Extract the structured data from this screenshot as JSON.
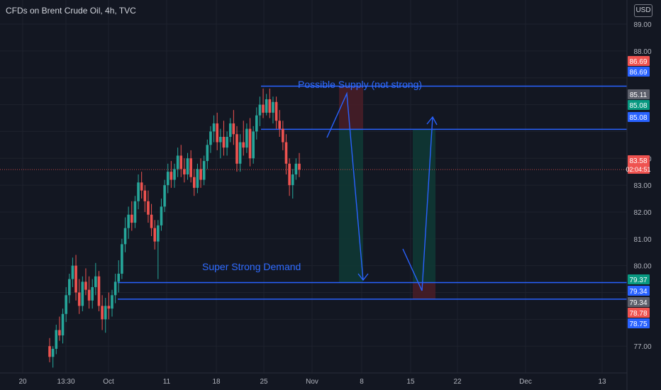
{
  "header": {
    "title": "CFDs on Brent Crude Oil, 4h, TVC",
    "currency": "USD"
  },
  "colors": {
    "background": "#131722",
    "grid": "#1e222d",
    "axis_text": "#b2b5be",
    "candle_up": "#26a69a",
    "candle_down": "#ef5350",
    "drawing_line": "#2962ff",
    "drawing_text": "#2f6bff",
    "zone_green": "#0f3a35",
    "zone_red": "#4a1d27",
    "current_price_line": "#ef5350"
  },
  "chart_data": {
    "type": "candlestick",
    "symbol": "Brent Crude Oil",
    "timeframe": "4h",
    "source": "TVC",
    "ylim": [
      76.0,
      89.9
    ],
    "y_ticks": [
      77.0,
      78.0,
      79.0,
      80.0,
      81.0,
      82.0,
      83.0,
      84.0,
      85.0,
      86.0,
      87.0,
      88.0,
      89.0
    ],
    "y_tick_labels": [
      "77.00",
      "",
      "",
      "80.00",
      "81.00",
      "82.00",
      "83.00",
      "84.00",
      "",
      "",
      "",
      "88.00",
      "89.00"
    ],
    "x_ticks": [
      "20",
      "13:30",
      "Oct",
      "11",
      "18",
      "25",
      "Nov",
      "8",
      "15",
      "22",
      "Dec",
      "13"
    ],
    "price_labels": [
      {
        "value": "86.69",
        "color": "#ef5350"
      },
      {
        "value": "86.69",
        "color": "#2962ff"
      },
      {
        "value": "85.11",
        "color": "#5d606b"
      },
      {
        "value": "85.08",
        "color": "#089981"
      },
      {
        "value": "85.08",
        "color": "#2962ff"
      },
      {
        "value": "83.58",
        "color": "#ef5350",
        "countdown": "02:04:51"
      },
      {
        "value": "79.37",
        "color": "#089981"
      },
      {
        "value": "79.34",
        "color": "#2962ff"
      },
      {
        "value": "79.34",
        "color": "#5d606b"
      },
      {
        "value": "78.78",
        "color": "#ef5350"
      },
      {
        "value": "78.75",
        "color": "#2962ff"
      }
    ],
    "horizontal_levels": [
      86.69,
      85.08,
      79.37,
      78.75
    ],
    "last_price": 83.58,
    "annotations": [
      "Possible Supply (not strong)",
      "Super Strong Demand"
    ],
    "candles": [
      [
        77.0,
        77.3,
        76.4,
        76.6
      ],
      [
        76.6,
        77.0,
        76.2,
        76.9
      ],
      [
        76.9,
        77.8,
        76.7,
        77.6
      ],
      [
        77.6,
        78.1,
        77.2,
        77.4
      ],
      [
        77.4,
        78.4,
        77.1,
        78.2
      ],
      [
        78.2,
        79.2,
        77.9,
        78.9
      ],
      [
        78.9,
        79.7,
        78.6,
        79.5
      ],
      [
        79.5,
        80.3,
        79.2,
        80.0
      ],
      [
        80.0,
        80.4,
        78.7,
        79.0
      ],
      [
        79.0,
        79.5,
        78.2,
        78.5
      ],
      [
        78.5,
        79.6,
        78.3,
        79.4
      ],
      [
        79.4,
        79.9,
        78.9,
        79.1
      ],
      [
        79.1,
        79.6,
        78.4,
        78.7
      ],
      [
        78.7,
        79.5,
        78.4,
        79.2
      ],
      [
        79.2,
        80.1,
        78.9,
        79.6
      ],
      [
        79.6,
        79.8,
        78.3,
        78.5
      ],
      [
        78.5,
        78.9,
        77.6,
        78.0
      ],
      [
        78.0,
        78.8,
        77.5,
        78.5
      ],
      [
        78.5,
        79.0,
        78.0,
        78.4
      ],
      [
        78.4,
        79.1,
        78.1,
        78.9
      ],
      [
        78.9,
        79.7,
        78.6,
        79.4
      ],
      [
        79.4,
        80.2,
        79.0,
        79.7
      ],
      [
        79.7,
        81.0,
        79.5,
        80.8
      ],
      [
        80.8,
        81.8,
        80.5,
        81.4
      ],
      [
        81.4,
        82.2,
        81.0,
        81.9
      ],
      [
        81.9,
        82.4,
        81.3,
        81.6
      ],
      [
        81.6,
        82.6,
        81.4,
        82.4
      ],
      [
        82.4,
        83.4,
        82.1,
        83.1
      ],
      [
        83.1,
        83.5,
        82.5,
        82.8
      ],
      [
        82.8,
        83.0,
        82.0,
        82.4
      ],
      [
        82.4,
        82.8,
        81.6,
        81.9
      ],
      [
        81.9,
        82.3,
        81.1,
        81.4
      ],
      [
        81.4,
        81.7,
        80.6,
        80.9
      ],
      [
        80.9,
        81.7,
        79.5,
        81.5
      ],
      [
        81.5,
        82.5,
        81.3,
        82.2
      ],
      [
        82.2,
        83.2,
        82.0,
        83.0
      ],
      [
        83.0,
        83.8,
        82.7,
        83.5
      ],
      [
        83.5,
        83.9,
        82.9,
        83.2
      ],
      [
        83.2,
        83.8,
        82.9,
        83.6
      ],
      [
        83.6,
        84.4,
        83.3,
        84.1
      ],
      [
        84.1,
        84.5,
        83.3,
        83.6
      ],
      [
        83.6,
        84.0,
        83.1,
        83.4
      ],
      [
        83.4,
        84.2,
        83.2,
        84.0
      ],
      [
        84.0,
        84.3,
        83.1,
        83.3
      ],
      [
        83.3,
        83.6,
        82.6,
        82.9
      ],
      [
        82.9,
        83.8,
        82.7,
        83.6
      ],
      [
        83.6,
        84.0,
        82.9,
        83.2
      ],
      [
        83.2,
        84.1,
        83.0,
        83.9
      ],
      [
        83.9,
        84.7,
        83.6,
        84.5
      ],
      [
        84.5,
        85.2,
        84.2,
        85.0
      ],
      [
        85.0,
        85.6,
        84.6,
        85.3
      ],
      [
        85.3,
        85.7,
        84.3,
        84.6
      ],
      [
        84.6,
        85.1,
        84.0,
        84.8
      ],
      [
        84.8,
        85.4,
        84.1,
        84.4
      ],
      [
        84.4,
        85.0,
        84.1,
        84.8
      ],
      [
        84.8,
        85.5,
        84.6,
        85.3
      ],
      [
        85.3,
        85.8,
        84.5,
        84.9
      ],
      [
        84.9,
        85.2,
        83.5,
        83.8
      ],
      [
        83.8,
        84.9,
        83.5,
        84.6
      ],
      [
        84.6,
        85.4,
        84.1,
        84.4
      ],
      [
        84.4,
        85.3,
        84.2,
        85.1
      ],
      [
        85.1,
        85.5,
        83.7,
        84.0
      ],
      [
        84.0,
        85.2,
        83.8,
        85.0
      ],
      [
        85.0,
        85.9,
        84.7,
        85.6
      ],
      [
        85.6,
        86.3,
        85.2,
        86.0
      ],
      [
        86.0,
        86.6,
        85.5,
        85.7
      ],
      [
        85.7,
        86.4,
        85.6,
        86.2
      ],
      [
        86.2,
        86.6,
        85.5,
        85.7
      ],
      [
        85.7,
        86.3,
        85.3,
        86.1
      ],
      [
        86.1,
        86.3,
        85.1,
        85.4
      ],
      [
        85.4,
        85.8,
        84.8,
        85.1
      ],
      [
        85.1,
        85.4,
        84.3,
        84.6
      ],
      [
        84.6,
        84.9,
        83.4,
        83.8
      ],
      [
        83.8,
        84.0,
        82.6,
        83.0
      ],
      [
        83.0,
        83.6,
        82.5,
        83.4
      ],
      [
        83.4,
        84.0,
        83.2,
        83.8
      ],
      [
        83.8,
        84.2,
        83.3,
        83.58
      ]
    ]
  }
}
